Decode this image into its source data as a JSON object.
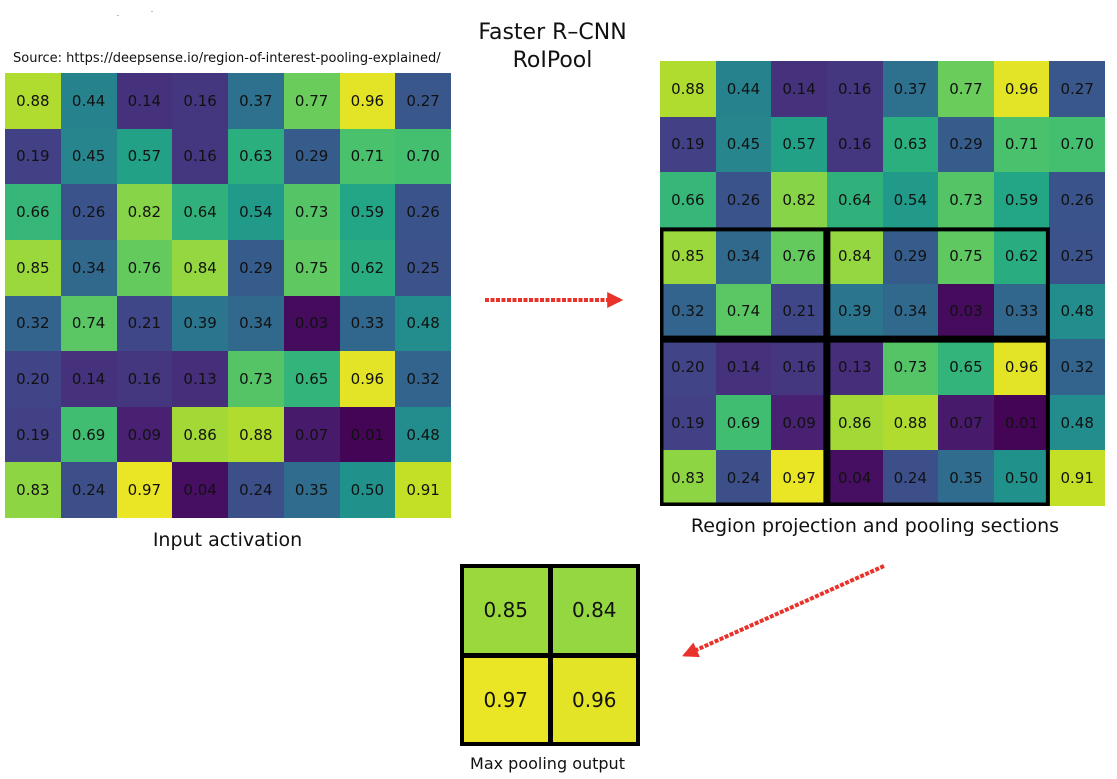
{
  "header": {
    "title_line1": "Faster R–CNN",
    "title_line2": "RoIPool",
    "source": "Source: https://deepsense.io/region-of-interest-pooling-explained/"
  },
  "input_activation": {
    "caption": "Input activation",
    "values": [
      [
        "0.88",
        "0.44",
        "0.14",
        "0.16",
        "0.37",
        "0.77",
        "0.96",
        "0.27"
      ],
      [
        "0.19",
        "0.45",
        "0.57",
        "0.16",
        "0.63",
        "0.29",
        "0.71",
        "0.70"
      ],
      [
        "0.66",
        "0.26",
        "0.82",
        "0.64",
        "0.54",
        "0.73",
        "0.59",
        "0.26"
      ],
      [
        "0.85",
        "0.34",
        "0.76",
        "0.84",
        "0.29",
        "0.75",
        "0.62",
        "0.25"
      ],
      [
        "0.32",
        "0.74",
        "0.21",
        "0.39",
        "0.34",
        "0.03",
        "0.33",
        "0.48"
      ],
      [
        "0.20",
        "0.14",
        "0.16",
        "0.13",
        "0.73",
        "0.65",
        "0.96",
        "0.32"
      ],
      [
        "0.19",
        "0.69",
        "0.09",
        "0.86",
        "0.88",
        "0.07",
        "0.01",
        "0.48"
      ],
      [
        "0.83",
        "0.24",
        "0.97",
        "0.04",
        "0.24",
        "0.35",
        "0.50",
        "0.91"
      ]
    ]
  },
  "region_projection": {
    "caption": "Region projection and pooling sections",
    "region_rows": [
      3,
      7
    ],
    "region_cols": [
      0,
      6
    ],
    "sections": [
      {
        "rows": [
          3,
          4
        ],
        "cols": [
          0,
          2
        ]
      },
      {
        "rows": [
          3,
          4
        ],
        "cols": [
          3,
          6
        ]
      },
      {
        "rows": [
          5,
          7
        ],
        "cols": [
          0,
          2
        ]
      },
      {
        "rows": [
          5,
          7
        ],
        "cols": [
          3,
          6
        ]
      }
    ]
  },
  "max_pooling_output": {
    "caption": "Max pooling output",
    "values": [
      [
        "0.85",
        "0.84"
      ],
      [
        "0.97",
        "0.96"
      ]
    ]
  },
  "colors": {
    "arrow": "#e8322a",
    "border": "#000000",
    "colormap": "viridis"
  }
}
